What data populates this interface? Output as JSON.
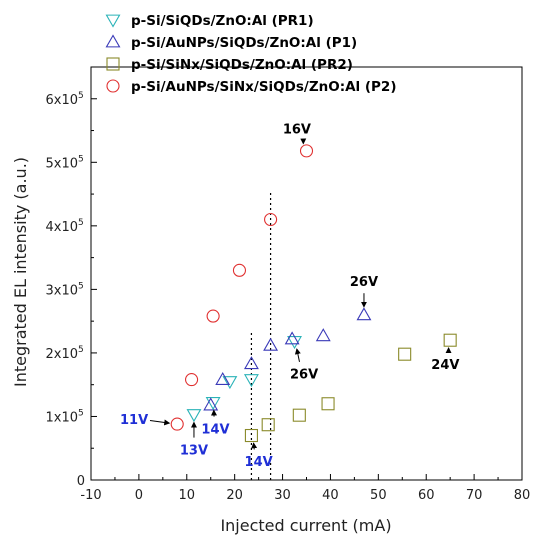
{
  "chart_data": {
    "type": "scatter",
    "xlabel": "Injected current (mA)",
    "ylabel": "Integrated EL intensity (a.u.)",
    "xlim": [
      -10,
      80
    ],
    "ylim": [
      0,
      650000
    ],
    "x_ticks": [
      -10,
      0,
      10,
      20,
      30,
      40,
      50,
      60,
      70,
      80
    ],
    "x_tick_labels": [
      "-10",
      "0",
      "10",
      "20",
      "30",
      "40",
      "50",
      "60",
      "70",
      "80"
    ],
    "y_ticks": [
      0,
      100000,
      200000,
      300000,
      400000,
      500000,
      600000
    ],
    "y_tick_labels": [
      {
        "base": "0",
        "exp": ""
      },
      {
        "base": "1x10",
        "exp": "5"
      },
      {
        "base": "2x10",
        "exp": "5"
      },
      {
        "base": "3x10",
        "exp": "5"
      },
      {
        "base": "4x10",
        "exp": "5"
      },
      {
        "base": "5x10",
        "exp": "5"
      },
      {
        "base": "6x10",
        "exp": "5"
      }
    ],
    "grid": false,
    "legend_position": "top-left",
    "series": [
      {
        "name": "p-Si/SiQDs/ZnO:Al (PR1)",
        "marker": "triangle-down",
        "color": "#2ab3b8",
        "points": [
          [
            11.5,
            103000
          ],
          [
            15.5,
            122000
          ],
          [
            19,
            155000
          ],
          [
            23.5,
            158000
          ],
          [
            32.5,
            218000
          ]
        ]
      },
      {
        "name": "p-Si/AuNPs/SiQDs/ZnO:Al (P1)",
        "marker": "triangle-up",
        "color": "#3a3ab8",
        "points": [
          [
            15,
            118000
          ],
          [
            17.5,
            158000
          ],
          [
            23.5,
            183000
          ],
          [
            27.5,
            212000
          ],
          [
            32,
            222000
          ],
          [
            38.5,
            227000
          ],
          [
            47,
            260000
          ]
        ]
      },
      {
        "name": "p-Si/SiNx/SiQDs/ZnO:Al (PR2)",
        "marker": "square",
        "color": "#8a8a2a",
        "points": [
          [
            23.5,
            70000
          ],
          [
            27,
            87000
          ],
          [
            33.5,
            102000
          ],
          [
            39.5,
            120000
          ],
          [
            55.5,
            198000
          ],
          [
            65,
            220000
          ]
        ]
      },
      {
        "name": "p-Si/AuNPs/SiNx/SiQDs/ZnO:Al (P2)",
        "marker": "circle",
        "color": "#e03030",
        "points": [
          [
            8,
            88000
          ],
          [
            11,
            158000
          ],
          [
            15.5,
            258000
          ],
          [
            21,
            330000
          ],
          [
            27.5,
            410000
          ],
          [
            35,
            518000
          ]
        ]
      }
    ],
    "reference_lines": [
      {
        "x": 23.5,
        "y_range": [
          0,
          235000
        ]
      },
      {
        "x": 27.5,
        "y_range": [
          0,
          455000
        ]
      }
    ],
    "annotations": [
      {
        "text": "16V",
        "color": "#000000",
        "at": [
          35,
          518000
        ],
        "label_pos": [
          33,
          545000
        ]
      },
      {
        "text": "26V",
        "color": "#000000",
        "at": [
          47,
          260000
        ],
        "label_pos": [
          47,
          305000
        ]
      },
      {
        "text": "26V",
        "color": "#000000",
        "at": [
          32.5,
          218000
        ],
        "label_pos": [
          34.5,
          160000
        ]
      },
      {
        "text": "24V",
        "color": "#000000",
        "at": [
          65,
          220000
        ],
        "label_pos": [
          64,
          175000
        ]
      },
      {
        "text": "11V",
        "color": "#1f2fd6",
        "at": [
          8,
          88000
        ],
        "label_pos": [
          -1,
          88000
        ]
      },
      {
        "text": "13V",
        "color": "#1f2fd6",
        "at": [
          11.5,
          103000
        ],
        "label_pos": [
          11.5,
          40000
        ]
      },
      {
        "text": "14V",
        "color": "#1f2fd6",
        "at": [
          15.5,
          122000
        ],
        "label_pos": [
          16,
          73000
        ]
      },
      {
        "text": "14V",
        "color": "#1f2fd6",
        "at": [
          23.5,
          70000
        ],
        "label_pos": [
          25,
          22000
        ]
      }
    ]
  }
}
